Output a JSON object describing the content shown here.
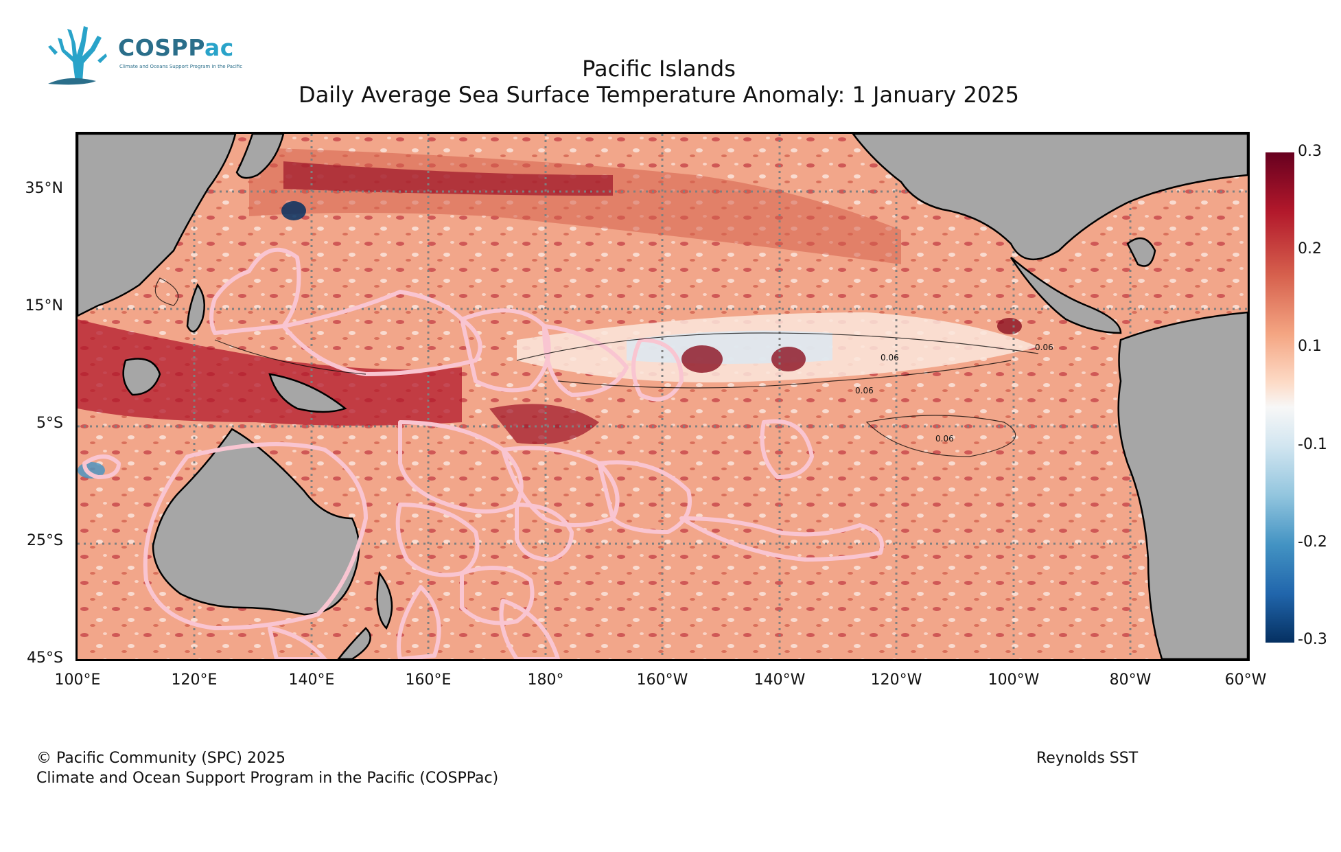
{
  "logo": {
    "name_part1": "COSPP",
    "name_part2": "ac",
    "tagline": "Climate and Oceans Support Program in the Pacific"
  },
  "title": {
    "line1": "Pacific Islands",
    "line2": "Daily Average Sea Surface Temperature Anomaly: 1 January 2025"
  },
  "map": {
    "latitude_labels": [
      "35°N",
      "15°N",
      "5°S",
      "25°S",
      "45°S"
    ],
    "longitude_labels": [
      "100°E",
      "120°E",
      "140°E",
      "160°E",
      "180°",
      "160°W",
      "140°W",
      "120°W",
      "100°W",
      "80°W",
      "60°W"
    ],
    "land_color": "#a6a6a6",
    "eez_outline_color": "#f9c5d1",
    "contour_label": "0.06"
  },
  "colorbar": {
    "labels": [
      "0.3",
      "0.2",
      "0.1",
      "-0.1",
      "-0.2",
      "-0.3"
    ],
    "colormap": "RdBu_r",
    "max_color": "#67001f",
    "mid_color": "#f7f7f7",
    "min_color": "#053061"
  },
  "footer": {
    "copyright": "© Pacific Community (SPC) 2025",
    "program": "Climate and Ocean Support Program in the Pacific (COSPPac)",
    "source": "Reynolds SST"
  }
}
